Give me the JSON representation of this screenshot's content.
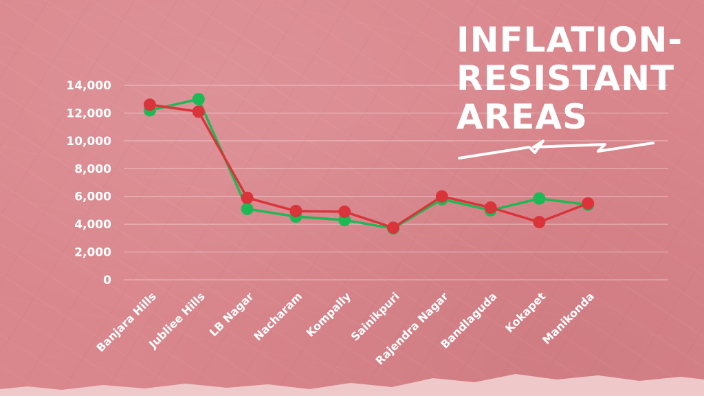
{
  "title": {
    "lines": [
      "INFLATION-",
      "RESISTANT",
      "AREAS"
    ]
  },
  "colors": {
    "background": "#d9868c",
    "series_green": "#1db954",
    "series_red": "#d8343a",
    "text": "#ffffff"
  },
  "chart_data": {
    "type": "line",
    "title": "INFLATION-RESISTANT AREAS",
    "xlabel": "",
    "ylabel": "",
    "categories": [
      "Banjara Hills",
      "Jubliee Hills",
      "LB Nagar",
      "Nacharam",
      "Kompally",
      "Sainikpuri",
      "Rajendra Nagar",
      "Bandlaguda",
      "Kokapet",
      "Manikonda"
    ],
    "yticks": [
      "0",
      "2,000",
      "4,000",
      "6,000",
      "8,000",
      "10,000",
      "12,000",
      "14,000"
    ],
    "ylim": [
      0,
      14000
    ],
    "grid": true,
    "series": [
      {
        "color": "#1db954",
        "values": [
          12200,
          13000,
          5100,
          4550,
          4300,
          3700,
          5800,
          5000,
          5850,
          5400
        ]
      },
      {
        "color": "#d8343a",
        "values": [
          12600,
          12100,
          5900,
          4950,
          4900,
          3750,
          6000,
          5200,
          4150,
          5500
        ]
      }
    ]
  }
}
